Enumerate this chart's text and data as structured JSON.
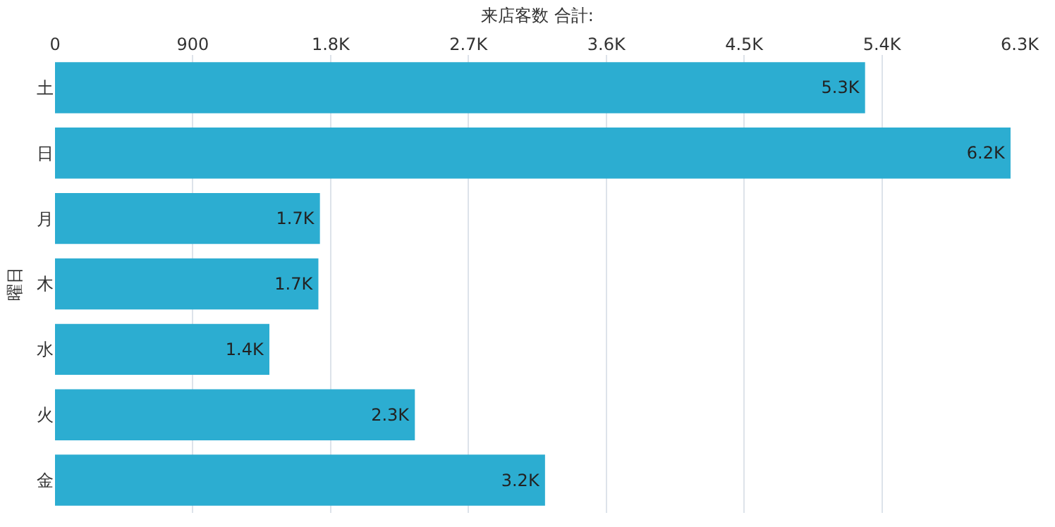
{
  "chart_data": {
    "type": "bar",
    "orientation": "horizontal",
    "xlabel": "来店客数 合計:",
    "ylabel": "曜日",
    "categories": [
      "土",
      "日",
      "月",
      "木",
      "水",
      "火",
      "金"
    ],
    "values": [
      5290,
      6240,
      1730,
      1720,
      1400,
      2350,
      3200
    ],
    "value_labels": [
      "5.3K",
      "6.2K",
      "1.7K",
      "1.7K",
      "1.4K",
      "2.3K",
      "3.2K"
    ],
    "color": "#2cadd1",
    "xlim": [
      0,
      6300
    ],
    "xticks": [
      0,
      900,
      {
        "value": 1800,
        "label": "1.8K"
      },
      {
        "value": 2700,
        "label": "2.7K"
      },
      {
        "value": 3600,
        "label": "3.6K"
      },
      {
        "value": 4500,
        "label": "4.5K"
      },
      {
        "value": 5400,
        "label": "5.4K"
      },
      {
        "value": 6300,
        "label": "6.3K"
      }
    ],
    "grid": "x",
    "legend": false
  }
}
